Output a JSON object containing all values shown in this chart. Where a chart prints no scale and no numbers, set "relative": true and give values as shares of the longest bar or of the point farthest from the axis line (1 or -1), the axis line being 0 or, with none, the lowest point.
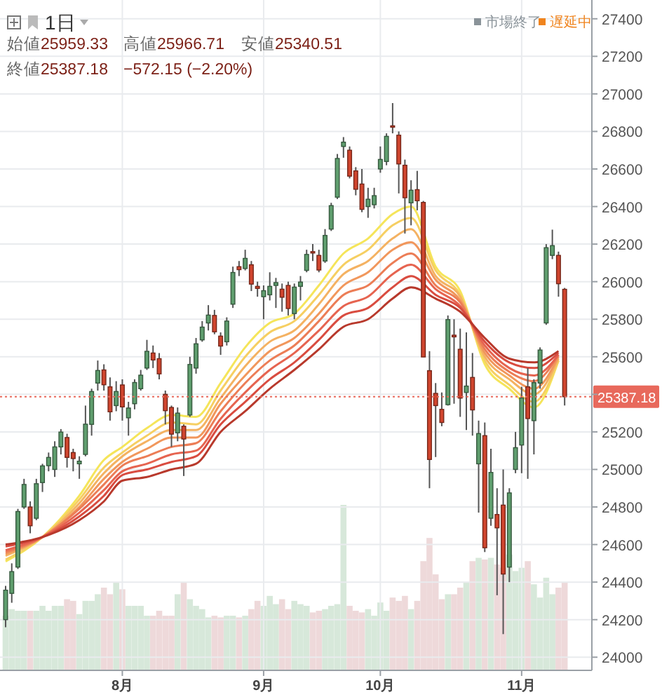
{
  "chart_data": [
    {
      "type": "candlestick",
      "title": "1日",
      "categories": [
        null,
        null,
        null,
        null,
        null,
        null,
        null,
        null,
        null,
        null,
        null,
        null,
        null,
        null,
        null,
        null,
        null,
        null,
        null,
        "8月",
        null,
        null,
        null,
        null,
        null,
        null,
        null,
        null,
        null,
        null,
        null,
        null,
        null,
        null,
        null,
        null,
        null,
        null,
        null,
        null,
        null,
        null,
        "9月",
        null,
        null,
        null,
        null,
        null,
        null,
        null,
        null,
        null,
        null,
        null,
        null,
        null,
        null,
        null,
        null,
        null,
        null,
        "10月",
        null,
        null,
        null,
        null,
        null,
        null,
        null,
        null,
        null,
        null,
        null,
        null,
        null,
        null,
        null,
        null,
        null,
        null,
        null,
        null,
        null,
        null,
        "11月",
        null,
        null,
        null,
        null,
        null,
        null,
        null
      ],
      "ohlc": [
        [
          24200,
          24380,
          24160,
          24357
        ],
        [
          24340,
          24500,
          24290,
          24456
        ],
        [
          24480,
          24790,
          24470,
          24776
        ],
        [
          24800,
          24950,
          24790,
          24920
        ],
        [
          24800,
          24830,
          24660,
          24700
        ],
        [
          24740,
          24950,
          24730,
          24924
        ],
        [
          24930,
          25030,
          24880,
          25019
        ],
        [
          25020,
          25090,
          24990,
          25064
        ],
        [
          25000,
          25150,
          24960,
          25120
        ],
        [
          25120,
          25215,
          25080,
          25199
        ],
        [
          25170,
          25190,
          25010,
          25064
        ],
        [
          25090,
          25110,
          24990,
          25058
        ],
        [
          25030,
          25070,
          24950,
          25044
        ],
        [
          25080,
          25340,
          25070,
          25241
        ],
        [
          25240,
          25430,
          25180,
          25415
        ],
        [
          25460,
          25580,
          25420,
          25527
        ],
        [
          25530,
          25560,
          25420,
          25451
        ],
        [
          25440,
          25490,
          25260,
          25307
        ],
        [
          25340,
          25470,
          25310,
          25415
        ],
        [
          25450,
          25480,
          25260,
          25333
        ],
        [
          25275,
          25360,
          25180,
          25327
        ],
        [
          25350,
          25480,
          25320,
          25463
        ],
        [
          25430,
          25530,
          25420,
          25502
        ],
        [
          25540,
          25690,
          25530,
          25629
        ],
        [
          25620,
          25660,
          25540,
          25583
        ],
        [
          25590,
          25620,
          25480,
          25509
        ],
        [
          25400,
          25420,
          25240,
          25313
        ],
        [
          25330,
          25340,
          25120,
          25188
        ],
        [
          25195,
          25330,
          25150,
          25300
        ],
        [
          25230,
          25240,
          24965,
          25162
        ],
        [
          25290,
          25600,
          25280,
          25559
        ],
        [
          25540,
          25700,
          25510,
          25669
        ],
        [
          25690,
          25790,
          25680,
          25758
        ],
        [
          25780,
          25875,
          25740,
          25822
        ],
        [
          25820,
          25850,
          25720,
          25733
        ],
        [
          25710,
          25730,
          25610,
          25657
        ],
        [
          25680,
          25810,
          25660,
          25790
        ],
        [
          25880,
          26080,
          25860,
          26049
        ],
        [
          26080,
          26110,
          26030,
          26064
        ],
        [
          26070,
          26170,
          26060,
          26124
        ],
        [
          26090,
          26110,
          25950,
          25987
        ],
        [
          25975,
          26000,
          25920,
          25964
        ],
        [
          25920,
          25980,
          25800,
          25952
        ],
        [
          25930,
          26050,
          25900,
          25975
        ],
        [
          25980,
          26020,
          25860,
          25995
        ],
        [
          25960,
          25990,
          25840,
          25917
        ],
        [
          25980,
          26000,
          25820,
          25857
        ],
        [
          25830,
          25990,
          25800,
          25971
        ],
        [
          25975,
          26030,
          25900,
          25998
        ],
        [
          26060,
          26170,
          26050,
          26145
        ],
        [
          26160,
          26200,
          26110,
          26154
        ],
        [
          26140,
          26170,
          26050,
          26062
        ],
        [
          26110,
          26280,
          26100,
          26246
        ],
        [
          26280,
          26420,
          26270,
          26405
        ],
        [
          26450,
          26680,
          26440,
          26656
        ],
        [
          26720,
          26770,
          26660,
          26743
        ],
        [
          26700,
          26720,
          26550,
          26562
        ],
        [
          26590,
          26610,
          26460,
          26492
        ],
        [
          26520,
          26600,
          26370,
          26385
        ],
        [
          26400,
          26500,
          26340,
          26439
        ],
        [
          26410,
          26500,
          26390,
          26458
        ],
        [
          26600,
          26720,
          26580,
          26651
        ],
        [
          26640,
          26790,
          26620,
          26774
        ],
        [
          26830,
          26951,
          26790,
          26828
        ],
        [
          26780,
          26800,
          26470,
          26627
        ],
        [
          26620,
          26650,
          26256,
          26447
        ],
        [
          26420,
          26540,
          26300,
          26487
        ],
        [
          26490,
          26590,
          26380,
          26431
        ],
        [
          26422,
          26430,
          25598,
          25599
        ],
        [
          25526,
          25630,
          24900,
          25053
        ],
        [
          25405,
          25460,
          25066,
          25340
        ],
        [
          25320,
          25410,
          25230,
          25250
        ],
        [
          25345,
          25820,
          25340,
          25798
        ],
        [
          25715,
          25800,
          25350,
          25706
        ],
        [
          25640,
          25750,
          25280,
          25380
        ],
        [
          25410,
          25730,
          25210,
          25444
        ],
        [
          25490,
          25620,
          25180,
          25317
        ],
        [
          25030,
          25260,
          24770,
          25191
        ],
        [
          25180,
          25250,
          24560,
          24583
        ],
        [
          24740,
          25110,
          24700,
          24984
        ],
        [
          24760,
          24900,
          24330,
          24689
        ],
        [
          24810,
          25000,
          24123,
          24443
        ],
        [
          24480,
          24900,
          24400,
          24875
        ],
        [
          25000,
          25200,
          24980,
          25116
        ],
        [
          25130,
          25440,
          24980,
          25381
        ],
        [
          25440,
          25540,
          24950,
          25271
        ],
        [
          25260,
          25480,
          25080,
          25462
        ],
        [
          25460,
          25650,
          25430,
          25636
        ],
        [
          25780,
          26200,
          25770,
          26181
        ],
        [
          26140,
          26277,
          26120,
          26192
        ],
        [
          26140,
          26160,
          25920,
          25989
        ],
        [
          25959.33,
          25966.71,
          25340.51,
          25387.18
        ]
      ],
      "colors": [
        "#5f9e6e",
        "#5f9e6e",
        "#5f9e6e",
        "#5f9e6e",
        "#d0452e",
        "#5f9e6e",
        "#5f9e6e",
        "#5f9e6e",
        "#5f9e6e",
        "#5f9e6e",
        "#d0452e",
        "#d0452e",
        "#5f9e6e",
        "#5f9e6e",
        "#5f9e6e",
        "#5f9e6e",
        "#d0452e",
        "#d0452e",
        "#5f9e6e",
        "#d0452e",
        "#5f9e6e",
        "#5f9e6e",
        "#5f9e6e",
        "#5f9e6e",
        "#d0452e",
        "#d0452e",
        "#d0452e",
        "#d0452e",
        "#5f9e6e",
        "#d0452e",
        "#5f9e6e",
        "#5f9e6e",
        "#5f9e6e",
        "#5f9e6e",
        "#d0452e",
        "#d0452e",
        "#5f9e6e",
        "#5f9e6e",
        "#d0452e",
        "#5f9e6e",
        "#d0452e",
        "#d0452e",
        "#5f9e6e",
        "#5f9e6e",
        "#5f9e6e",
        "#d0452e",
        "#d0452e",
        "#5f9e6e",
        "#5f9e6e",
        "#5f9e6e",
        "#d0452e",
        "#d0452e",
        "#5f9e6e",
        "#5f9e6e",
        "#5f9e6e",
        "#5f9e6e",
        "#d0452e",
        "#d0452e",
        "#d0452e",
        "#5f9e6e",
        "#5f9e6e",
        "#5f9e6e",
        "#5f9e6e",
        "#d0452e",
        "#d0452e",
        "#d0452e",
        "#5f9e6e",
        "#d0452e",
        "#d0452e",
        "#d0452e",
        "#d0452e",
        "#d0452e",
        "#5f9e6e",
        "#d0452e",
        "#d0452e",
        "#5f9e6e",
        "#d0452e",
        "#5f9e6e",
        "#d0452e",
        "#5f9e6e",
        "#d0452e",
        "#d0452e",
        "#5f9e6e",
        "#5f9e6e",
        "#5f9e6e",
        "#d0452e",
        "#5f9e6e",
        "#5f9e6e",
        "#5f9e6e",
        "#5f9e6e",
        "#d0452e",
        "#d0452e"
      ],
      "series": [
        {
          "type": "line",
          "color": "#f5e55a",
          "values": [
            24510,
            null,
            null,
            null,
            null,
            null,
            24640,
            null,
            null,
            null,
            null,
            null,
            24860,
            null,
            null,
            null,
            25050,
            null,
            null,
            25120,
            null,
            null,
            null,
            25220,
            null,
            null,
            null,
            25290,
            null,
            null,
            null,
            25280,
            null,
            null,
            null,
            25460,
            null,
            null,
            null,
            25650,
            null,
            null,
            null,
            25780,
            null,
            null,
            null,
            25830,
            null,
            null,
            null,
            25980,
            null,
            null,
            null,
            26150,
            null,
            null,
            null,
            26230,
            null,
            null,
            null,
            26360,
            null,
            null,
            26400,
            null,
            null,
            null,
            26080,
            null,
            null,
            null,
            25950,
            null,
            null,
            null,
            25560,
            null,
            null,
            null,
            25430,
            null,
            null,
            null,
            25330,
            null,
            null,
            null,
            25580,
            null
          ]
        },
        {
          "type": "line",
          "color": "#f6cf62",
          "values": [
            24520,
            null,
            null,
            null,
            null,
            null,
            24640,
            null,
            null,
            null,
            null,
            null,
            24840,
            null,
            null,
            null,
            25010,
            null,
            null,
            25090,
            null,
            null,
            null,
            25180,
            null,
            null,
            null,
            25250,
            null,
            null,
            null,
            25240,
            null,
            null,
            null,
            25420,
            null,
            null,
            null,
            25600,
            null,
            null,
            null,
            25730,
            null,
            null,
            null,
            25790,
            null,
            null,
            null,
            25930,
            null,
            null,
            null,
            26090,
            null,
            null,
            null,
            26170,
            null,
            null,
            null,
            26300,
            null,
            null,
            26340,
            null,
            null,
            null,
            26060,
            null,
            null,
            null,
            25930,
            null,
            null,
            null,
            25580,
            null,
            null,
            null,
            25450,
            null,
            null,
            null,
            25360,
            null,
            null,
            null,
            25580,
            null
          ]
        },
        {
          "type": "line",
          "color": "#f4b262",
          "values": [
            24540,
            null,
            null,
            null,
            null,
            null,
            24640,
            null,
            null,
            null,
            null,
            null,
            24820,
            null,
            null,
            null,
            24980,
            null,
            null,
            25070,
            null,
            null,
            null,
            25150,
            null,
            null,
            null,
            25210,
            null,
            null,
            null,
            25210,
            null,
            null,
            null,
            25380,
            null,
            null,
            null,
            25550,
            null,
            null,
            null,
            25680,
            null,
            null,
            null,
            25740,
            null,
            null,
            null,
            25880,
            null,
            null,
            null,
            26040,
            null,
            null,
            null,
            26110,
            null,
            null,
            null,
            26230,
            null,
            null,
            26280,
            null,
            null,
            null,
            26030,
            null,
            null,
            null,
            25920,
            null,
            null,
            null,
            25600,
            null,
            null,
            null,
            25480,
            null,
            null,
            null,
            25400,
            null,
            null,
            null,
            25590,
            null
          ]
        },
        {
          "type": "line",
          "color": "#f1975c",
          "values": [
            24550,
            null,
            null,
            null,
            null,
            null,
            24640,
            null,
            null,
            null,
            null,
            null,
            24800,
            null,
            null,
            null,
            24950,
            null,
            null,
            25040,
            null,
            null,
            null,
            25110,
            null,
            null,
            null,
            25170,
            null,
            null,
            null,
            25170,
            null,
            null,
            null,
            25350,
            null,
            null,
            null,
            25500,
            null,
            null,
            null,
            25630,
            null,
            null,
            null,
            25700,
            null,
            null,
            null,
            25830,
            null,
            null,
            null,
            25980,
            null,
            null,
            null,
            26050,
            null,
            null,
            null,
            26170,
            null,
            null,
            26210,
            null,
            null,
            null,
            26010,
            null,
            null,
            null,
            25900,
            null,
            null,
            null,
            25620,
            null,
            null,
            null,
            25500,
            null,
            null,
            null,
            25430,
            null,
            null,
            null,
            25600,
            null
          ]
        },
        {
          "type": "line",
          "color": "#ec7d56",
          "values": [
            24560,
            null,
            null,
            null,
            null,
            null,
            24640,
            null,
            null,
            null,
            null,
            null,
            24790,
            null,
            null,
            null,
            24920,
            null,
            null,
            25020,
            null,
            null,
            null,
            25070,
            null,
            null,
            null,
            25120,
            null,
            null,
            null,
            25140,
            null,
            null,
            null,
            25310,
            null,
            null,
            null,
            25460,
            null,
            null,
            null,
            25580,
            null,
            null,
            null,
            25660,
            null,
            null,
            null,
            25790,
            null,
            null,
            null,
            25930,
            null,
            null,
            null,
            25980,
            null,
            null,
            null,
            26100,
            null,
            null,
            26150,
            null,
            null,
            null,
            25980,
            null,
            null,
            null,
            25890,
            null,
            null,
            null,
            25640,
            null,
            null,
            null,
            25520,
            null,
            null,
            null,
            25470,
            null,
            null,
            null,
            25610,
            null
          ]
        },
        {
          "type": "line",
          "color": "#e66450",
          "values": [
            24570,
            null,
            null,
            null,
            null,
            null,
            24640,
            null,
            null,
            null,
            null,
            null,
            24770,
            null,
            null,
            null,
            24890,
            null,
            null,
            24990,
            null,
            null,
            null,
            25030,
            null,
            null,
            null,
            25080,
            null,
            null,
            null,
            25100,
            null,
            null,
            null,
            25270,
            null,
            null,
            null,
            25410,
            null,
            null,
            null,
            25530,
            null,
            null,
            null,
            25620,
            null,
            null,
            null,
            25740,
            null,
            null,
            null,
            25870,
            null,
            null,
            null,
            25920,
            null,
            null,
            null,
            26040,
            null,
            null,
            26090,
            null,
            null,
            null,
            25960,
            null,
            null,
            null,
            25870,
            null,
            null,
            null,
            25660,
            null,
            null,
            null,
            25540,
            null,
            null,
            null,
            25500,
            null,
            null,
            null,
            25610,
            null
          ]
        },
        {
          "type": "line",
          "color": "#d94c40",
          "values": [
            24590,
            null,
            null,
            null,
            null,
            null,
            24640,
            null,
            null,
            null,
            null,
            null,
            24750,
            null,
            null,
            null,
            24860,
            null,
            null,
            24970,
            null,
            null,
            null,
            25000,
            null,
            null,
            null,
            25040,
            null,
            null,
            null,
            25070,
            null,
            null,
            null,
            25240,
            null,
            null,
            null,
            25360,
            null,
            null,
            null,
            25480,
            null,
            null,
            null,
            25570,
            null,
            null,
            null,
            25690,
            null,
            null,
            null,
            25820,
            null,
            null,
            null,
            25860,
            null,
            null,
            null,
            25970,
            null,
            null,
            26030,
            null,
            null,
            null,
            25930,
            null,
            null,
            null,
            25860,
            null,
            null,
            null,
            25680,
            null,
            null,
            null,
            25570,
            null,
            null,
            null,
            25540,
            null,
            null,
            null,
            25620,
            null
          ]
        },
        {
          "type": "line",
          "color": "#b8392c",
          "values": [
            24600,
            null,
            null,
            null,
            null,
            null,
            24640,
            null,
            null,
            null,
            null,
            null,
            24730,
            null,
            null,
            null,
            24830,
            null,
            null,
            24940,
            null,
            null,
            null,
            24960,
            null,
            null,
            null,
            25000,
            null,
            null,
            null,
            25030,
            null,
            null,
            null,
            25200,
            null,
            null,
            null,
            25310,
            null,
            null,
            null,
            25430,
            null,
            null,
            null,
            25530,
            null,
            null,
            null,
            25640,
            null,
            null,
            null,
            25760,
            null,
            null,
            null,
            25800,
            null,
            null,
            null,
            25910,
            null,
            null,
            25970,
            null,
            null,
            null,
            25910,
            null,
            null,
            null,
            25840,
            null,
            null,
            null,
            25700,
            null,
            null,
            null,
            25590,
            null,
            null,
            null,
            25570,
            null,
            null,
            null,
            25630,
            null
          ]
        }
      ],
      "ylim": [
        23930,
        27500
      ],
      "yticks": [
        24000,
        24200,
        24400,
        24600,
        24800,
        25000,
        25200,
        {
          "value": 25400,
          "label": null
        },
        25600,
        25800,
        26000,
        26200,
        26400,
        26600,
        26800,
        27000,
        27200,
        27400
      ],
      "grid": true,
      "ref_lines": [
        {
          "axis": "y",
          "value": 25387.18,
          "label": "25387.18",
          "color": "#e8695c",
          "line_style": "dotted"
        }
      ],
      "annotations": [
        "始値25959.33",
        "高値25966.71",
        "安値25340.51",
        "終値25387.18",
        "−572.15 (−2.20%)",
        "市場終了",
        "遅延中"
      ]
    },
    {
      "type": "bar",
      "relative": true,
      "categories": [
        null,
        null,
        null,
        null,
        null,
        null,
        null,
        null,
        null,
        null,
        null,
        null,
        null,
        null,
        null,
        null,
        null,
        null,
        null,
        null,
        null,
        null,
        null,
        null,
        null,
        null,
        null,
        null,
        null,
        null,
        null,
        null,
        null,
        null,
        null,
        null,
        null,
        null,
        null,
        null,
        null,
        null,
        null,
        null,
        null,
        null,
        null,
        null,
        null,
        null,
        null,
        null,
        null,
        null,
        null,
        null,
        null,
        null,
        null,
        null,
        null,
        null,
        null,
        null,
        null,
        null,
        null,
        null,
        null,
        null,
        null,
        null,
        null,
        null,
        null,
        null,
        null,
        null,
        null,
        null,
        null,
        null,
        null,
        null,
        null,
        null,
        null,
        null,
        null,
        null,
        null,
        null
      ],
      "values": [
        0.33,
        0.37,
        0.36,
        0.36,
        0.36,
        0.36,
        0.39,
        0.36,
        0.39,
        0.39,
        0.43,
        0.42,
        0.34,
        0.42,
        0.42,
        0.46,
        0.5,
        0.46,
        0.53,
        0.49,
        0.39,
        0.39,
        0.39,
        0.33,
        0.33,
        0.36,
        0.33,
        0.33,
        0.46,
        0.53,
        0.43,
        0.39,
        0.37,
        0.32,
        0.33,
        0.32,
        0.33,
        0.33,
        0.32,
        0.33,
        0.37,
        0.42,
        0.39,
        0.45,
        0.4,
        0.43,
        0.37,
        0.42,
        0.4,
        0.39,
        0.35,
        0.36,
        0.37,
        0.39,
        0.4,
        1.0,
        0.39,
        0.36,
        0.35,
        0.37,
        0.33,
        0.41,
        0.36,
        0.44,
        0.42,
        0.45,
        0.37,
        0.42,
        0.66,
        0.8,
        0.58,
        0.43,
        0.46,
        0.46,
        0.5,
        0.53,
        0.66,
        0.68,
        0.67,
        0.68,
        0.64,
        0.62,
        0.7,
        0.6,
        0.62,
        0.66,
        0.52,
        0.44,
        0.56,
        0.46,
        0.5,
        0.53
      ],
      "colors": [
        "#d7e8da",
        "#d7e8da",
        "#d7e8da",
        "#d7e8da",
        "#eed9da",
        "#d7e8da",
        "#d7e8da",
        "#d7e8da",
        "#d7e8da",
        "#d7e8da",
        "#eed9da",
        "#eed9da",
        "#d7e8da",
        "#d7e8da",
        "#d7e8da",
        "#d7e8da",
        "#eed9da",
        "#eed9da",
        "#d7e8da",
        "#eed9da",
        "#d7e8da",
        "#d7e8da",
        "#d7e8da",
        "#d7e8da",
        "#eed9da",
        "#eed9da",
        "#eed9da",
        "#eed9da",
        "#d7e8da",
        "#eed9da",
        "#d7e8da",
        "#d7e8da",
        "#d7e8da",
        "#d7e8da",
        "#eed9da",
        "#eed9da",
        "#d7e8da",
        "#d7e8da",
        "#eed9da",
        "#d7e8da",
        "#eed9da",
        "#eed9da",
        "#d7e8da",
        "#d7e8da",
        "#d7e8da",
        "#eed9da",
        "#eed9da",
        "#d7e8da",
        "#d7e8da",
        "#d7e8da",
        "#eed9da",
        "#eed9da",
        "#d7e8da",
        "#d7e8da",
        "#d7e8da",
        "#d7e8da",
        "#eed9da",
        "#eed9da",
        "#eed9da",
        "#d7e8da",
        "#d7e8da",
        "#d7e8da",
        "#d7e8da",
        "#eed9da",
        "#eed9da",
        "#eed9da",
        "#d7e8da",
        "#eed9da",
        "#eed9da",
        "#eed9da",
        "#eed9da",
        "#eed9da",
        "#d7e8da",
        "#eed9da",
        "#eed9da",
        "#d7e8da",
        "#eed9da",
        "#d7e8da",
        "#eed9da",
        "#d7e8da",
        "#eed9da",
        "#eed9da",
        "#d7e8da",
        "#d7e8da",
        "#d7e8da",
        "#eed9da",
        "#d7e8da",
        "#d7e8da",
        "#d7e8da",
        "#d7e8da",
        "#eed9da",
        "#eed9da"
      ]
    }
  ]
}
